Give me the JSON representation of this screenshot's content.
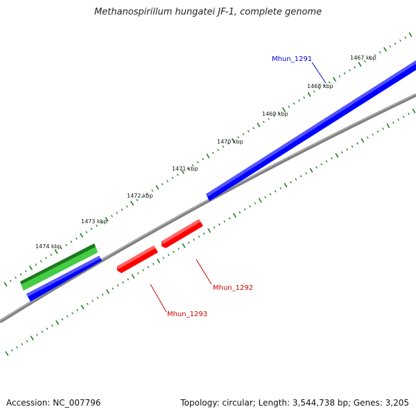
{
  "header": {
    "title": "Methanospirillum hungatei JF-1, complete genome"
  },
  "footer": {
    "accession": "Accession: NC_007796",
    "stats": "Topology: circular; Length: 3,544,738 bp; Genes: 3,205"
  },
  "ticks": [
    {
      "label": "1467 kbp"
    },
    {
      "label": "1468 kbp"
    },
    {
      "label": "1469 kbp"
    },
    {
      "label": "1470 kbp"
    },
    {
      "label": "1471 kbp"
    },
    {
      "label": "1472 kbp"
    },
    {
      "label": "1473 kbp"
    },
    {
      "label": "1474 kbp"
    }
  ],
  "genes": [
    {
      "label": "Mhun_1291",
      "strand": "forward",
      "color": "#0000ff"
    },
    {
      "label": "Mhun_1292",
      "strand": "reverse",
      "color": "#ff0000"
    },
    {
      "label": "Mhun_1293",
      "strand": "reverse",
      "color": "#ff0000"
    }
  ],
  "colors": {
    "backbone": "#808080",
    "cds_forward": "#0000ff",
    "cds_reverse": "#ff0000",
    "rna": "#22aa22",
    "ticks": "#1a7a1a"
  }
}
